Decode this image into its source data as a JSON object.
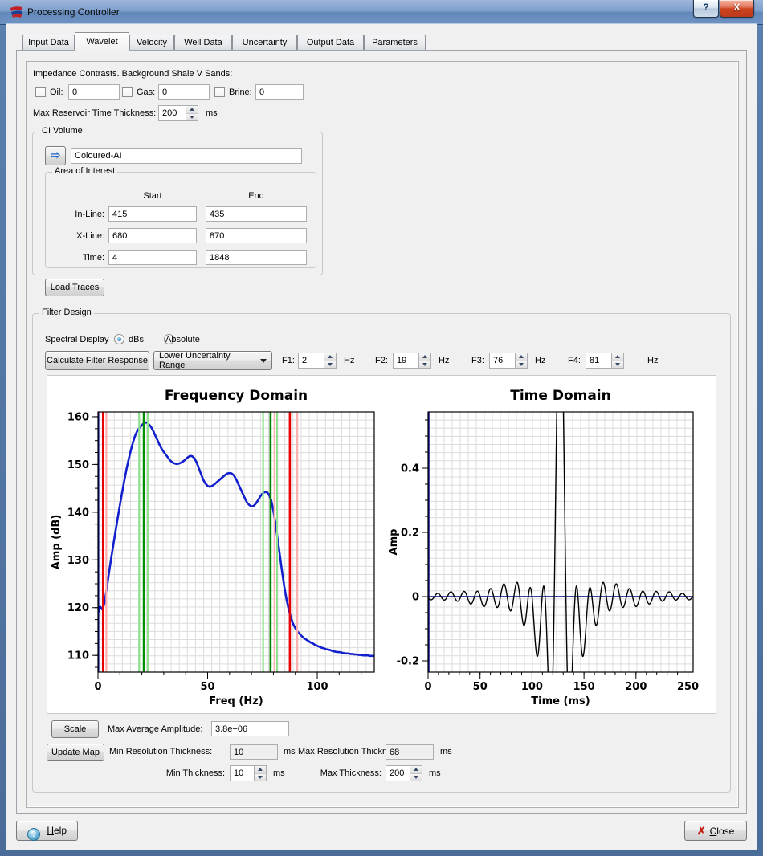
{
  "window": {
    "title": "Processing Controller",
    "help_glyph": "?",
    "close_glyph": "X"
  },
  "tabs": [
    {
      "label": "Input Data",
      "active": false
    },
    {
      "label": "Wavelet",
      "active": true
    },
    {
      "label": "Velocity",
      "active": false
    },
    {
      "label": "Well Data",
      "active": false
    },
    {
      "label": "Uncertainty",
      "active": false
    },
    {
      "label": "Output Data",
      "active": false
    },
    {
      "label": "Parameters",
      "active": false
    }
  ],
  "impedance": {
    "heading": "Impedance Contrasts. Background Shale V Sands:",
    "fields": [
      {
        "label": "Oil:",
        "value": "0",
        "checked": false
      },
      {
        "label": "Gas:",
        "value": "0",
        "checked": false
      },
      {
        "label": "Brine:",
        "value": "0",
        "checked": false
      }
    ],
    "max_reservoir_label": "Max Reservoir Time Thickness:",
    "max_reservoir_value": "200",
    "unit_ms": "ms"
  },
  "ci_volume": {
    "title": "CI Volume",
    "arrow_glyph": "⇨",
    "volume_name": "Coloured-AI",
    "area_of_interest": {
      "title": "Area of Interest",
      "col_start": "Start",
      "col_end": "End",
      "rows": [
        {
          "label": "In-Line:",
          "start": "415",
          "end": "435"
        },
        {
          "label": "X-Line:",
          "start": "680",
          "end": "870"
        },
        {
          "label": "Time:",
          "start": "4",
          "end": "1848"
        }
      ]
    },
    "load_traces_label": "Load Traces"
  },
  "filter_design": {
    "title": "Filter Design",
    "spectral_display_label": "Spectral Display",
    "radio_dbs": "dBs",
    "radio_absolute": "Absolute",
    "calculate_button": "Calculate Filter Response",
    "range_dropdown": "Lower Uncertainty Range",
    "freqs": [
      {
        "label": "F1:",
        "value": "2",
        "unit": "Hz"
      },
      {
        "label": "F2:",
        "value": "19",
        "unit": "Hz"
      },
      {
        "label": "F3:",
        "value": "76",
        "unit": "Hz"
      },
      {
        "label": "F4:",
        "value": "81",
        "unit": "Hz"
      }
    ]
  },
  "bottom": {
    "scale_button": "Scale",
    "max_avg_label": "Max Average Amplitude:",
    "max_avg_value": "3.8e+06",
    "update_map_button": "Update Map",
    "min_res_label": "Min Resolution Thickness:",
    "min_res_value": "10",
    "max_res_label": "Max Resolution Thickness:",
    "max_res_value": "68",
    "min_thickness_label": "Min Thickness:",
    "min_thickness_value": "10",
    "max_thickness_label": "Max Thickness:",
    "max_thickness_value": "200",
    "ms": "ms"
  },
  "footer": {
    "help_first": "H",
    "help_rest": "elp",
    "close_first": "C",
    "close_rest": "lose",
    "close_icon": "✗",
    "help_icon": "?"
  },
  "chart_data": [
    {
      "id": "frequency_domain",
      "type": "line",
      "title": "Frequency Domain",
      "xlabel": "Freq (Hz)",
      "ylabel": "Amp (dB)",
      "xlim": [
        0,
        126
      ],
      "ylim": [
        106.5,
        161
      ],
      "xticks": [
        0,
        50,
        100
      ],
      "xminor": 10,
      "yticks": [
        110,
        120,
        130,
        140,
        150,
        160
      ],
      "yminor": 2.5,
      "grid": true,
      "series": {
        "name": "amplitude-spectrum",
        "color": "#1120cc",
        "width": 2.6,
        "x_start": 0,
        "x_step": 1,
        "y": [
          118.8,
          120.2,
          119.6,
          121.0,
          124.0,
          127.3,
          130.3,
          133.2,
          136.0,
          138.8,
          141.5,
          144.1,
          146.6,
          149.0,
          151.1,
          153.0,
          154.7,
          156.1,
          157.1,
          157.7,
          158.2,
          158.7,
          158.8,
          158.5,
          158.0,
          157.2,
          156.2,
          155.2,
          154.2,
          153.3,
          152.6,
          152.0,
          151.4,
          150.8,
          150.4,
          150.2,
          150.1,
          150.2,
          150.4,
          150.7,
          151.1,
          151.5,
          151.8,
          151.7,
          151.3,
          150.4,
          149.2,
          148.0,
          146.8,
          146.0,
          145.5,
          145.3,
          145.5,
          145.8,
          146.2,
          146.6,
          147.0,
          147.4,
          147.8,
          148.1,
          148.2,
          148.1,
          147.7,
          146.9,
          145.9,
          144.9,
          143.9,
          142.9,
          142.0,
          141.5,
          141.2,
          141.3,
          141.8,
          142.5,
          143.3,
          143.9,
          144.2,
          144.2,
          143.7,
          142.5,
          140.3,
          137.4,
          134.2,
          130.8,
          127.4,
          124.3,
          121.7,
          119.6,
          117.9,
          116.6,
          115.7,
          115.0,
          114.5,
          114.0,
          113.6,
          113.3,
          113.0,
          112.7,
          112.5,
          112.2,
          112.0,
          111.8,
          111.6,
          111.5,
          111.3,
          111.2,
          111.1,
          110.9,
          110.8,
          110.7,
          110.7,
          110.6,
          110.5,
          110.4,
          110.4,
          110.3,
          110.3,
          110.2,
          110.2,
          110.1,
          110.1,
          110.0,
          110.0,
          110.0,
          109.9,
          109.9,
          109.9,
          109.8,
          109.8
        ]
      },
      "vlines": [
        {
          "x": 0.35,
          "color": "#000080",
          "width": 1.2
        },
        {
          "x": 2.3,
          "color": "#e60000",
          "width": 2.6
        },
        {
          "x": 3.8,
          "color": "#ffadad",
          "width": 2.2
        },
        {
          "x": 18.8,
          "color": "#8fe08f",
          "width": 2.2
        },
        {
          "x": 20.9,
          "color": "#009000",
          "width": 2.6
        },
        {
          "x": 22.7,
          "color": "#8fe08f",
          "width": 2.2
        },
        {
          "x": 75.3,
          "color": "#8fe08f",
          "width": 2.2
        },
        {
          "x": 78.7,
          "color": "#008000",
          "width": 2.6
        },
        {
          "x": 80.5,
          "color": "#ffadad",
          "width": 2.2
        },
        {
          "x": 81.7,
          "color": "#8fe08f",
          "width": 2.2
        },
        {
          "x": 87.5,
          "color": "#e60000",
          "width": 2.6
        },
        {
          "x": 90.9,
          "color": "#ffadad",
          "width": 2.2
        }
      ]
    },
    {
      "id": "time_domain",
      "type": "line",
      "title": "Time Domain",
      "xlabel": "Time (ms)",
      "ylabel": "Amp",
      "xlim": [
        0,
        255
      ],
      "ylim": [
        -0.235,
        0.575
      ],
      "xticks": [
        0,
        50,
        100,
        150,
        200,
        250
      ],
      "xminor": 10,
      "yticks": [
        -0.2,
        0,
        0.2,
        0.4
      ],
      "ytick_labels": [
        "-0.2",
        "0",
        "0.2",
        "0.4"
      ],
      "yminor": 0.05,
      "grid": true,
      "zero_lines": {
        "x": true,
        "y": true,
        "color": "#000080"
      },
      "series": {
        "name": "ormsby-bandpass-wavelet",
        "kind": "ormsby",
        "f1_hz": 2,
        "f2_hz": 19,
        "f3_hz": 76,
        "f4_hz": 81,
        "center_ms": 127,
        "peak_amplitude": 1,
        "sample_step_ms": 0.25,
        "color": "#000000",
        "width": 1.4
      }
    }
  ]
}
